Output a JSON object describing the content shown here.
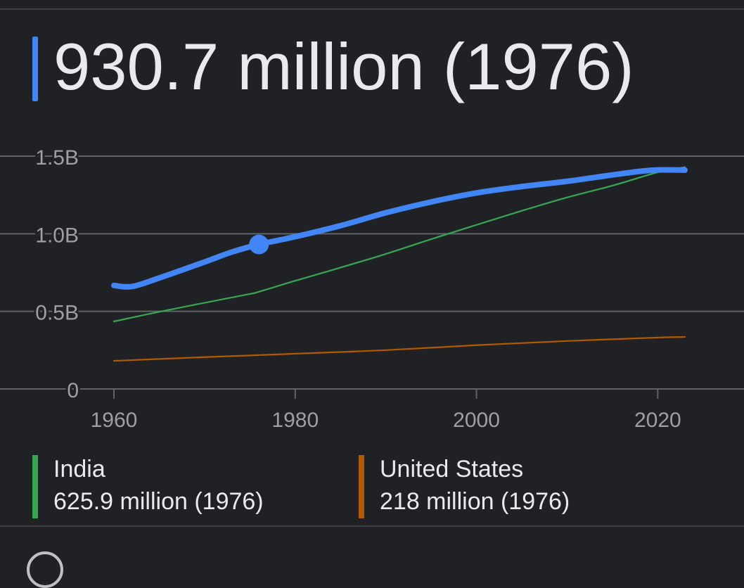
{
  "headline": {
    "text": "930.7 million (1976)",
    "accent": "#4285f4"
  },
  "chart_data": {
    "type": "line",
    "title": "",
    "xlabel": "",
    "ylabel": "",
    "xlim": [
      1960,
      2023
    ],
    "ylim": [
      0,
      1.5
    ],
    "grid": true,
    "y_ticks": [
      {
        "value": 1.5,
        "label": "1.5B"
      },
      {
        "value": 1.0,
        "label": "1.0B"
      },
      {
        "value": 0.5,
        "label": "0.5B"
      },
      {
        "value": 0,
        "label": "0"
      }
    ],
    "x_ticks": [
      {
        "value": 1960,
        "label": "1960"
      },
      {
        "value": 1980,
        "label": "1980"
      },
      {
        "value": 2000,
        "label": "2000"
      },
      {
        "value": 2020,
        "label": "2020"
      }
    ],
    "highlight": {
      "series": 0,
      "x": 1976,
      "y": 0.9307
    },
    "series": [
      {
        "name": "",
        "color": "#4285f4",
        "x": [
          1960,
          1962,
          1965,
          1970,
          1973,
          1976,
          1980,
          1985,
          1990,
          1995,
          2000,
          2005,
          2010,
          2015,
          2018,
          2020,
          2023
        ],
        "values": [
          0.667,
          0.66,
          0.715,
          0.818,
          0.882,
          0.931,
          0.981,
          1.052,
          1.135,
          1.205,
          1.263,
          1.304,
          1.338,
          1.379,
          1.402,
          1.411,
          1.41
        ]
      },
      {
        "name": "India",
        "color": "#34a853",
        "x": [
          1960,
          1965,
          1970,
          1975,
          1976,
          1980,
          1985,
          1990,
          1995,
          2000,
          2005,
          2010,
          2015,
          2020,
          2023
        ],
        "values": [
          0.435,
          0.497,
          0.555,
          0.612,
          0.626,
          0.697,
          0.782,
          0.87,
          0.965,
          1.057,
          1.148,
          1.234,
          1.31,
          1.396,
          1.429
        ]
      },
      {
        "name": "United States",
        "color": "#b35900",
        "x": [
          1960,
          1970,
          1976,
          1980,
          1990,
          2000,
          2010,
          2020,
          2023
        ],
        "values": [
          0.181,
          0.205,
          0.218,
          0.227,
          0.25,
          0.282,
          0.309,
          0.331,
          0.335
        ]
      }
    ]
  },
  "legend": [
    {
      "name": "India",
      "value": "625.9 million (1976)",
      "color": "#34a853"
    },
    {
      "name": "United States",
      "value": "218 million (1976)",
      "color": "#b35900"
    }
  ]
}
